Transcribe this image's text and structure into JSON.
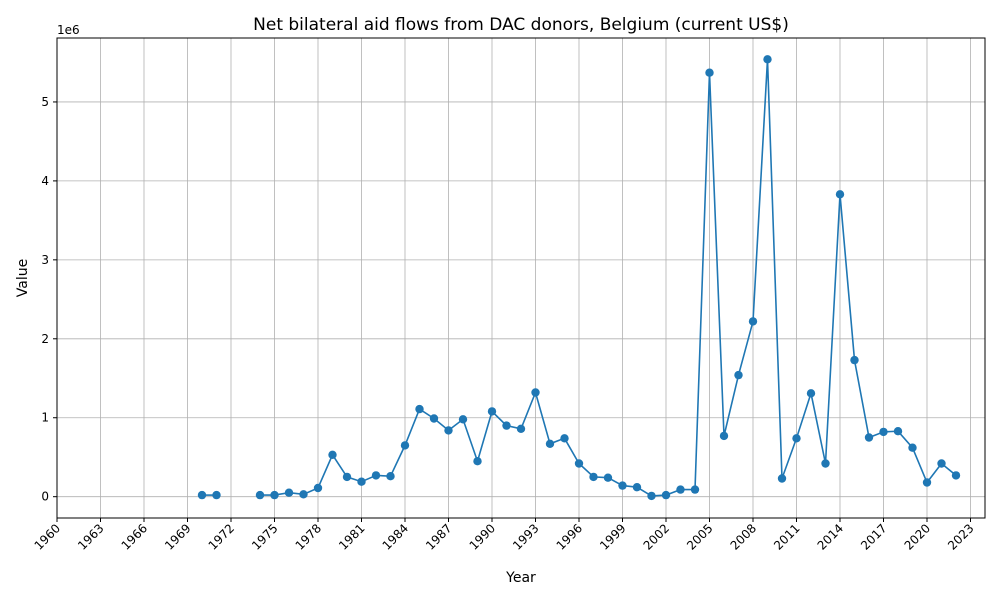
{
  "chart_data": {
    "type": "line",
    "title": "Net bilateral aid flows from DAC donors, Belgium (current US$)",
    "xlabel": "Year",
    "ylabel": "Value",
    "offset_label": "1e6",
    "xlim": [
      1960,
      2024
    ],
    "ylim": [
      -270000,
      5810000
    ],
    "grid": true,
    "color": "#1f77b4",
    "x_ticks": [
      1960,
      1963,
      1966,
      1969,
      1972,
      1975,
      1978,
      1981,
      1984,
      1987,
      1990,
      1993,
      1996,
      1999,
      2002,
      2005,
      2008,
      2011,
      2014,
      2017,
      2020,
      2023
    ],
    "y_ticks": [
      0,
      1000000,
      2000000,
      3000000,
      4000000,
      5000000
    ],
    "y_tick_labels": [
      "0",
      "1",
      "2",
      "3",
      "4",
      "5"
    ],
    "segments": [
      [
        [
          1970,
          20000
        ],
        [
          1971,
          20000
        ]
      ],
      [
        [
          1974,
          20000
        ],
        [
          1975,
          20000
        ],
        [
          1976,
          50000
        ],
        [
          1977,
          30000
        ],
        [
          1978,
          110000
        ],
        [
          1979,
          530000
        ],
        [
          1980,
          250000
        ],
        [
          1981,
          190000
        ],
        [
          1982,
          270000
        ],
        [
          1983,
          260000
        ],
        [
          1984,
          650000
        ],
        [
          1985,
          1110000
        ],
        [
          1986,
          990000
        ],
        [
          1987,
          840000
        ],
        [
          1988,
          980000
        ],
        [
          1989,
          450000
        ],
        [
          1990,
          1080000
        ],
        [
          1991,
          900000
        ],
        [
          1992,
          860000
        ],
        [
          1993,
          1320000
        ],
        [
          1994,
          670000
        ],
        [
          1995,
          740000
        ],
        [
          1996,
          420000
        ],
        [
          1997,
          250000
        ],
        [
          1998,
          240000
        ],
        [
          1999,
          140000
        ],
        [
          2000,
          120000
        ],
        [
          2001,
          10000
        ],
        [
          2002,
          20000
        ],
        [
          2003,
          90000
        ],
        [
          2004,
          90000
        ],
        [
          2005,
          5370000
        ],
        [
          2006,
          770000
        ],
        [
          2007,
          1540000
        ],
        [
          2008,
          2220000
        ],
        [
          2009,
          5540000
        ],
        [
          2010,
          230000
        ],
        [
          2011,
          740000
        ],
        [
          2012,
          1310000
        ],
        [
          2013,
          420000
        ],
        [
          2014,
          3830000
        ],
        [
          2015,
          1730000
        ],
        [
          2016,
          750000
        ],
        [
          2017,
          820000
        ],
        [
          2018,
          830000
        ],
        [
          2019,
          620000
        ],
        [
          2020,
          180000
        ],
        [
          2021,
          420000
        ],
        [
          2022,
          270000
        ]
      ]
    ]
  }
}
